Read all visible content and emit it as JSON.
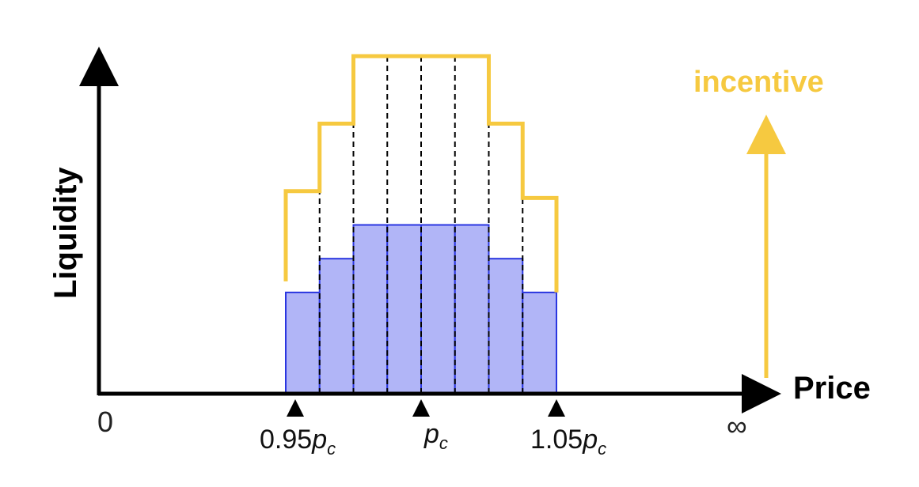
{
  "y_axis_label": "Liquidity",
  "x_axis_label": "Price",
  "incentive_label": "incentive",
  "tick_labels": {
    "origin": "0",
    "infinity": "∞",
    "low": {
      "coef": "0.95",
      "var": "p",
      "sub": "c"
    },
    "center": {
      "var": "p",
      "sub": "c"
    },
    "high": {
      "coef": "1.05",
      "var": "p",
      "sub": "c"
    }
  },
  "colors": {
    "axis": "#000000",
    "liquidity_fill": "#b1b5f7",
    "liquidity_stroke": "#2a36e0",
    "incentive": "#f6c940",
    "divider": "#000000"
  },
  "chart_data": {
    "type": "bar",
    "liquidity_levels": [
      0.3,
      0.4,
      0.5,
      0.5,
      0.5,
      0.5,
      0.4,
      0.3
    ],
    "incentive_levels": [
      0.6,
      0.8,
      1.0,
      1.0,
      1.0,
      1.0,
      0.8,
      0.58
    ],
    "markers": [
      "low",
      "center",
      "high"
    ]
  }
}
